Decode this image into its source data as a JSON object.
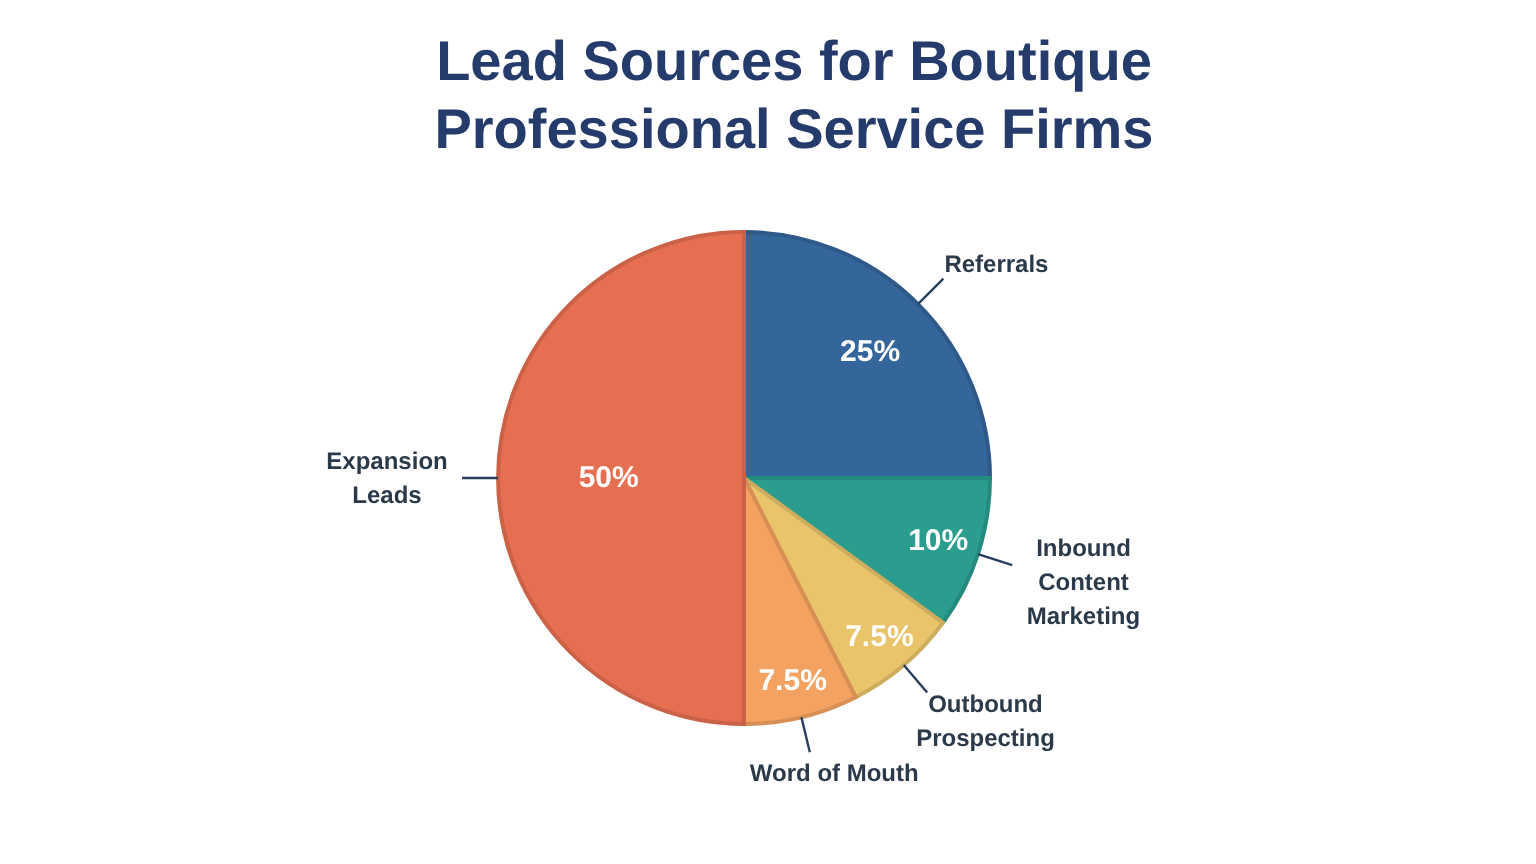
{
  "chart_data": {
    "type": "pie",
    "title": "Lead Sources for Boutique Professional Service Firms",
    "categories": [
      "Referrals",
      "Inbound Content Marketing",
      "Outbound Prospecting",
      "Word of Mouth",
      "Expansion Leads"
    ],
    "values": [
      25,
      10,
      7.5,
      7.5,
      50
    ],
    "colors": [
      "#34659b",
      "#2a9d8f",
      "#e9c46a",
      "#f4a261",
      "#e76f51"
    ],
    "value_labels": [
      "25%",
      "10%",
      "7.5%",
      "7.5%",
      "50%"
    ]
  }
}
